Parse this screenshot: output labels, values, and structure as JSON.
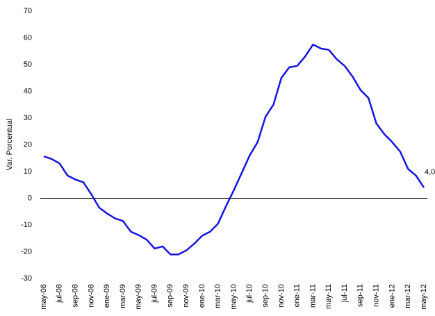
{
  "chart_data": {
    "type": "line",
    "y_label": "Var. Porcentual",
    "categories": [
      "may-08",
      null,
      "jul-08",
      null,
      "sep-08",
      null,
      "nov-08",
      null,
      "ene-09",
      null,
      "mar-09",
      null,
      "may-09",
      null,
      "jul-09",
      null,
      "sep-09",
      null,
      "nov-09",
      null,
      "ene-10",
      null,
      "mar-10",
      null,
      "may-10",
      null,
      "jul-10",
      null,
      "sep-10",
      null,
      "nov-10",
      null,
      "ene-11",
      null,
      "mar-11",
      null,
      "may-11",
      null,
      "jul-11",
      null,
      "sep-11",
      null,
      "nov-11",
      null,
      "ene-12",
      null,
      "mar-12",
      null,
      "may-12"
    ],
    "series": [
      {
        "name": "Var. Porcentual",
        "color": "#1414e0",
        "values": [
          15.7,
          14.7,
          13,
          8.5,
          7,
          6,
          1.5,
          -3.5,
          -5.7,
          -7.5,
          -8.5,
          -12.5,
          -13.8,
          -15.5,
          -18.8,
          -18,
          -21,
          -21,
          -19.5,
          -17,
          -14,
          -12.5,
          -9.5,
          -3,
          3,
          9.5,
          16,
          21,
          30.5,
          35,
          45,
          49,
          49.5,
          53,
          57.5,
          56,
          55.5,
          52,
          49.5,
          45.5,
          40.5,
          37.5,
          28,
          24,
          21,
          17.5,
          11,
          8.5,
          4.0
        ],
        "value_labels": [
          null,
          null,
          null,
          null,
          null,
          null,
          null,
          null,
          null,
          null,
          null,
          null,
          null,
          null,
          null,
          null,
          null,
          null,
          null,
          null,
          null,
          null,
          null,
          null,
          null,
          null,
          null,
          null,
          null,
          null,
          null,
          null,
          null,
          null,
          null,
          null,
          null,
          null,
          null,
          null,
          null,
          null,
          null,
          null,
          null,
          null,
          null,
          null,
          "4,0"
        ]
      }
    ],
    "ylim": [
      -30,
      70
    ],
    "yticks": [
      -30,
      -20,
      -10,
      0,
      10,
      20,
      30,
      40,
      50,
      60,
      70
    ],
    "grid": false,
    "legend": false
  }
}
